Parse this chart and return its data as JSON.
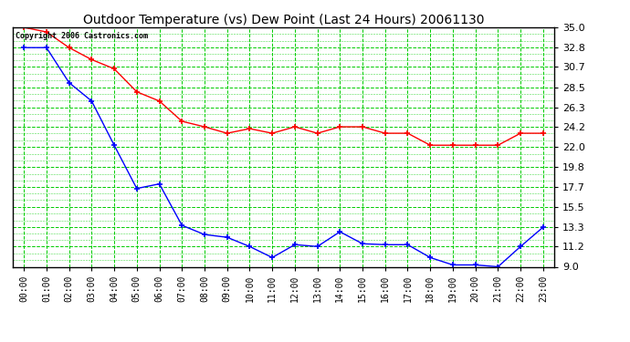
{
  "title": "Outdoor Temperature (vs) Dew Point (Last 24 Hours) 20061130",
  "copyright_text": "Copyright 2006 Castronics.com",
  "x_labels": [
    "00:00",
    "01:00",
    "02:00",
    "03:00",
    "04:00",
    "05:00",
    "06:00",
    "07:00",
    "08:00",
    "09:00",
    "10:00",
    "11:00",
    "12:00",
    "13:00",
    "14:00",
    "15:00",
    "16:00",
    "17:00",
    "18:00",
    "19:00",
    "20:00",
    "21:00",
    "22:00",
    "23:00"
  ],
  "y_ticks": [
    9.0,
    11.2,
    13.3,
    15.5,
    17.7,
    19.8,
    22.0,
    24.2,
    26.3,
    28.5,
    30.7,
    32.8,
    35.0
  ],
  "y_min": 9.0,
  "y_max": 35.0,
  "temp_color": "#FF0000",
  "dew_color": "#0000FF",
  "grid_color": "#00CC00",
  "background_color": "#FFFFFF",
  "plot_bg_color": "#FFFFFF",
  "title_fontsize": 10,
  "temp_data": [
    35.0,
    34.5,
    32.8,
    31.5,
    30.5,
    28.0,
    27.0,
    24.8,
    24.2,
    23.5,
    24.0,
    23.5,
    24.2,
    23.5,
    24.2,
    24.2,
    23.5,
    23.5,
    22.2,
    22.2,
    22.2,
    22.2,
    23.5,
    23.5
  ],
  "dew_data": [
    32.8,
    32.8,
    29.0,
    27.0,
    22.2,
    17.5,
    18.0,
    13.5,
    12.5,
    12.2,
    11.2,
    10.0,
    11.4,
    11.2,
    12.8,
    11.5,
    11.4,
    11.4,
    10.0,
    9.2,
    9.2,
    9.0,
    11.2,
    13.3
  ]
}
